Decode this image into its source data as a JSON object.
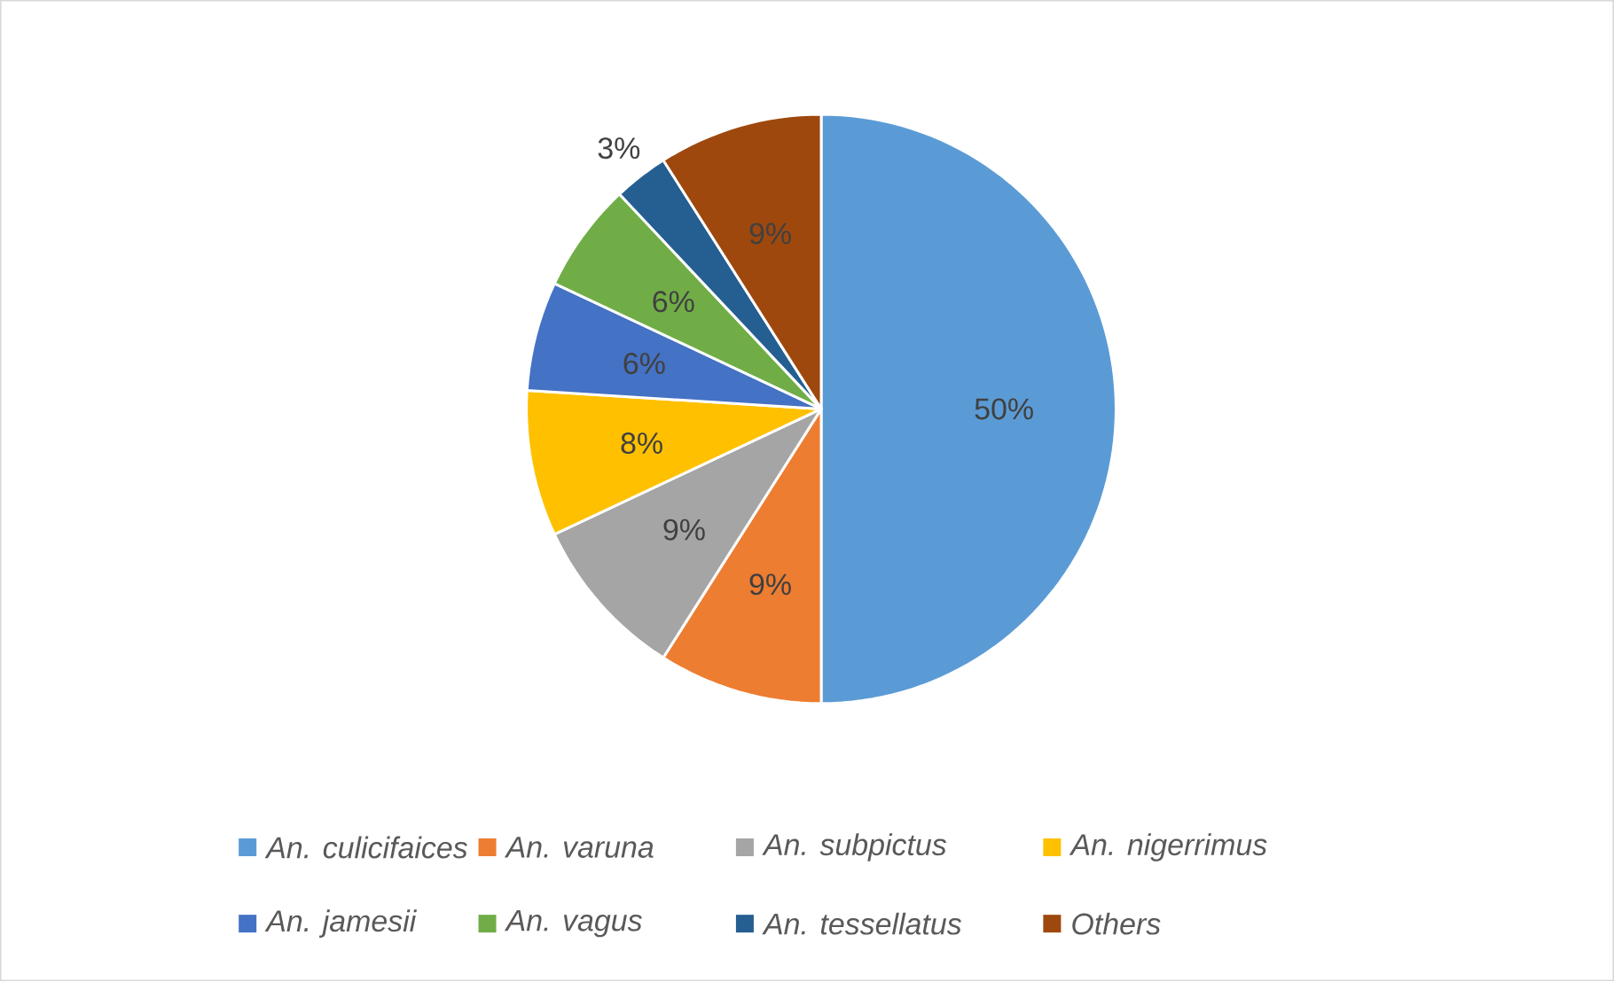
{
  "chart_data": {
    "type": "pie",
    "categories": [
      "An. culicifaices",
      "An. varuna",
      "An. subpictus",
      "An. nigerrimus",
      "An. jamesii",
      "An. vagus",
      "An. tessellatus",
      "Others"
    ],
    "values": [
      50,
      9,
      9,
      8,
      6,
      6,
      3,
      9
    ],
    "colors": [
      "#5b9bd5",
      "#ed7d31",
      "#a5a5a5",
      "#ffc000",
      "#4472c4",
      "#70ad47",
      "#255e91",
      "#9e480e"
    ],
    "value_labels": [
      "50%",
      "9%",
      "9%",
      "8%",
      "6%",
      "6%",
      "3%",
      "9%"
    ],
    "legend": "bottom"
  }
}
